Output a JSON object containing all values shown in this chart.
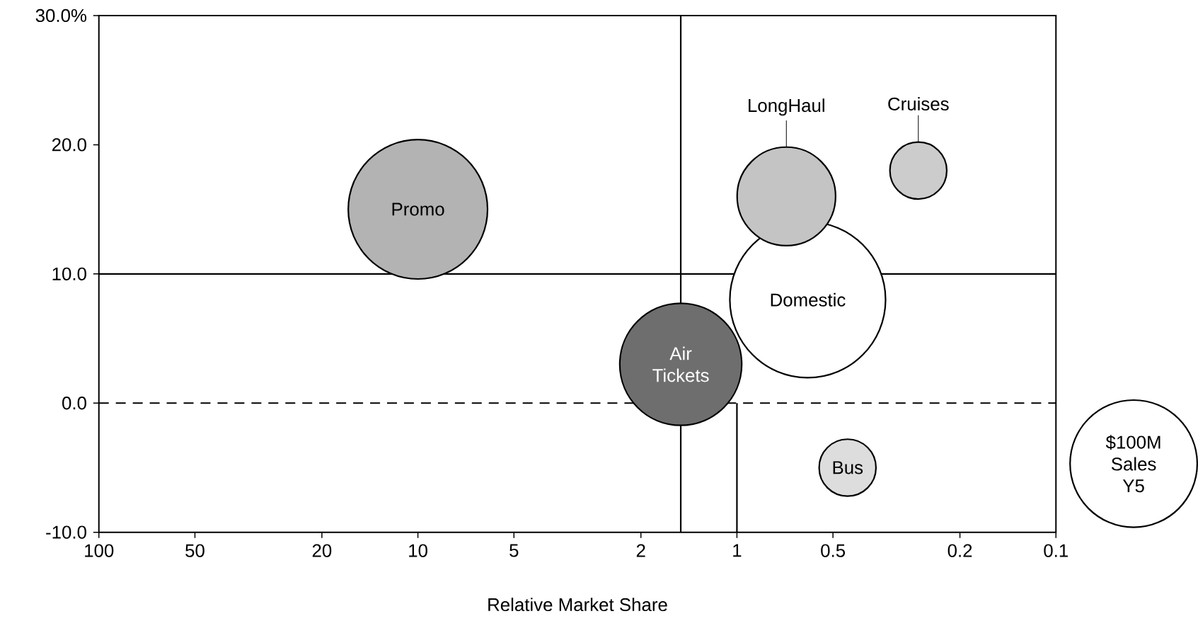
{
  "chart_data": {
    "type": "bubble",
    "xlabel": "Relative Market Share",
    "log": "x",
    "xlim": [
      100,
      0.1
    ],
    "xticks": [
      100,
      50,
      20,
      10,
      5,
      2,
      1,
      0.5,
      0.2,
      0.1
    ],
    "ylim": [
      -10,
      30
    ],
    "yticks": [
      {
        "value": -10,
        "label": "-10.0"
      },
      {
        "value": 0,
        "label": "0.0"
      },
      {
        "value": 10,
        "label": "10.0"
      },
      {
        "value": 20,
        "label": "20.0"
      },
      {
        "value": 30,
        "label": "30.0%"
      }
    ],
    "series": [
      {
        "type": "line",
        "x": [
          1,
          1
        ],
        "values": [
          -10,
          0
        ],
        "color": "#000000"
      },
      {
        "color": "#b3b3b3",
        "x": [
          10
        ],
        "values": [
          15
        ],
        "sizes": [
          120
        ]
      },
      {
        "color": "#6e6e6e",
        "x": [
          1.5
        ],
        "values": [
          3
        ],
        "sizes": [
          92
        ]
      },
      {
        "color": "#ffffff",
        "x": [
          0.6
        ],
        "values": [
          8
        ],
        "sizes": [
          150
        ]
      },
      {
        "color": "#c4c4c4",
        "x": [
          0.7
        ],
        "values": [
          16
        ],
        "sizes": [
          60
        ]
      },
      {
        "color": "#cccccc",
        "x": [
          0.27
        ],
        "values": [
          18
        ],
        "sizes": [
          20
        ]
      },
      {
        "color": "#dddddd",
        "x": [
          0.45
        ],
        "values": [
          -5
        ],
        "sizes": [
          20
        ]
      }
    ],
    "size_legend": [
      {
        "value": 100,
        "label": "$100M Sales Y5"
      }
    ],
    "ref_lines": [
      {
        "axis": "y",
        "value": 10
      },
      {
        "axis": "y",
        "value": 0,
        "line_style": "dashed"
      },
      {
        "axis": "x",
        "value": 1.5
      }
    ],
    "annotations": [
      {
        "text": "Promo",
        "x": 10,
        "y": 15
      },
      {
        "text": "Air Tickets",
        "x": 1.5,
        "y": 3
      },
      {
        "text": "Domestic",
        "x": 0.6,
        "y": 8
      },
      {
        "text": "LongHaul",
        "x": 0.7,
        "y": 19.8
      },
      {
        "text": "Cruises",
        "x": 0.27,
        "y": 20.2
      },
      {
        "text": "Bus",
        "x": 0.45,
        "y": -5
      }
    ]
  }
}
